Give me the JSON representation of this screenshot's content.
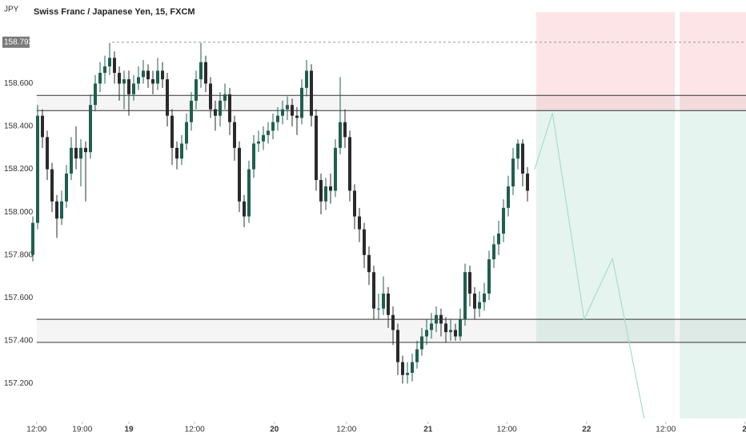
{
  "chart_data": {
    "type": "candlestick",
    "title": "Swiss Franc / Japanese Yen, 15, FXCM",
    "currency": "JPY",
    "up_color": "#1f5f4f",
    "down_color": "#2a2a2a",
    "open": [
      157.8,
      157.95,
      158.45,
      158.35,
      158.2,
      158.05,
      157.97,
      158.05,
      158.18,
      158.3,
      158.25,
      158.3,
      158.28,
      158.5,
      158.6,
      158.65,
      158.68,
      158.72,
      158.65,
      158.6,
      158.62,
      158.55,
      158.6,
      158.63,
      158.66,
      158.62,
      158.6,
      158.66,
      158.62,
      158.45,
      158.3,
      158.25,
      158.32,
      158.42,
      158.52,
      158.62,
      158.7,
      158.6,
      158.48,
      158.45,
      158.52,
      158.55,
      158.42,
      158.3,
      158.05,
      157.98,
      158.2,
      158.32,
      158.33,
      158.36,
      158.38,
      158.42,
      158.45,
      158.48,
      158.5,
      158.45,
      158.44,
      158.58,
      158.66,
      158.45,
      158.15,
      158.05,
      158.12,
      158.1,
      158.3,
      158.42,
      158.35,
      158.1,
      157.98,
      157.92,
      157.8,
      157.72,
      157.55,
      157.55,
      157.62,
      157.52,
      157.45,
      157.3,
      157.24,
      157.25,
      157.3,
      157.36,
      157.42,
      157.45,
      157.48,
      157.52,
      157.48,
      157.44,
      157.45,
      157.42,
      157.5,
      157.72,
      157.62,
      157.55,
      157.58,
      157.62,
      157.78,
      157.85,
      157.9,
      158.02,
      158.12,
      158.25,
      158.32,
      158.18
    ],
    "high": [
      157.98,
      158.5,
      158.48,
      158.38,
      158.23,
      158.08,
      158.1,
      158.22,
      158.35,
      158.4,
      158.34,
      158.33,
      158.55,
      158.64,
      158.7,
      158.73,
      158.79,
      158.75,
      158.68,
      158.66,
      158.66,
      158.64,
      158.68,
      158.71,
      158.69,
      158.66,
      158.72,
      158.7,
      158.65,
      158.48,
      158.33,
      158.36,
      158.46,
      158.56,
      158.66,
      158.79,
      158.73,
      158.63,
      158.52,
      158.56,
      158.6,
      158.58,
      158.45,
      158.33,
      158.08,
      158.24,
      158.36,
      158.38,
      158.4,
      158.42,
      158.46,
      158.49,
      158.52,
      158.54,
      158.53,
      158.49,
      158.62,
      158.71,
      158.69,
      158.48,
      158.18,
      158.16,
      158.18,
      158.34,
      158.63,
      158.48,
      158.38,
      158.13,
      158.02,
      157.95,
      157.84,
      157.75,
      157.62,
      157.7,
      157.65,
      157.56,
      157.48,
      157.33,
      157.3,
      157.34,
      157.4,
      157.46,
      157.5,
      157.53,
      157.56,
      157.55,
      157.51,
      157.5,
      157.48,
      157.55,
      157.76,
      157.75,
      157.65,
      157.63,
      157.67,
      157.82,
      157.89,
      157.96,
      158.06,
      158.17,
      158.3,
      158.34,
      158.34,
      158.21
    ],
    "low": [
      157.77,
      157.92,
      158.3,
      158.15,
      158.0,
      157.88,
      157.94,
      158.02,
      158.15,
      158.2,
      158.12,
      158.05,
      158.25,
      158.47,
      158.56,
      158.6,
      158.64,
      158.6,
      158.52,
      158.48,
      158.45,
      158.52,
      158.57,
      158.6,
      158.58,
      158.55,
      158.57,
      158.58,
      158.4,
      158.22,
      158.2,
      158.22,
      158.29,
      158.38,
      158.48,
      158.58,
      158.56,
      158.44,
      158.38,
      158.4,
      158.48,
      158.36,
      158.24,
      158.0,
      157.93,
      157.95,
      158.16,
      158.28,
      158.29,
      158.32,
      158.34,
      158.38,
      158.41,
      158.43,
      158.4,
      158.36,
      158.41,
      158.54,
      158.4,
      158.1,
      157.99,
      158.01,
      158.04,
      158.07,
      158.27,
      158.3,
      158.05,
      157.92,
      157.86,
      157.74,
      157.66,
      157.5,
      157.5,
      157.52,
      157.46,
      157.38,
      157.24,
      157.2,
      157.2,
      157.21,
      157.27,
      157.33,
      157.38,
      157.41,
      157.44,
      157.42,
      157.39,
      157.4,
      157.4,
      157.4,
      157.47,
      157.56,
      157.5,
      157.51,
      157.54,
      157.59,
      157.74,
      157.8,
      157.86,
      157.98,
      158.08,
      158.2,
      158.12,
      158.05
    ],
    "close": [
      157.95,
      158.45,
      158.35,
      158.2,
      158.05,
      157.97,
      158.05,
      158.18,
      158.3,
      158.25,
      158.3,
      158.28,
      158.5,
      158.6,
      158.65,
      158.68,
      158.72,
      158.65,
      158.6,
      158.62,
      158.55,
      158.6,
      158.63,
      158.66,
      158.62,
      158.6,
      158.66,
      158.62,
      158.45,
      158.3,
      158.25,
      158.32,
      158.42,
      158.52,
      158.62,
      158.7,
      158.6,
      158.48,
      158.45,
      158.52,
      158.55,
      158.42,
      158.3,
      158.05,
      157.98,
      158.2,
      158.32,
      158.33,
      158.36,
      158.38,
      158.42,
      158.45,
      158.48,
      158.5,
      158.45,
      158.44,
      158.58,
      158.66,
      158.45,
      158.15,
      158.05,
      158.12,
      158.1,
      158.3,
      158.42,
      158.35,
      158.1,
      157.98,
      157.92,
      157.8,
      157.72,
      157.55,
      157.55,
      157.62,
      157.52,
      157.45,
      157.3,
      157.24,
      157.25,
      157.3,
      157.36,
      157.42,
      157.45,
      157.48,
      157.52,
      157.48,
      157.44,
      157.45,
      157.42,
      157.5,
      157.72,
      157.62,
      157.55,
      157.58,
      157.62,
      157.78,
      157.85,
      157.9,
      158.02,
      158.12,
      158.25,
      158.32,
      158.18,
      158.1
    ],
    "xlim": [
      0,
      149
    ],
    "xticks": [
      {
        "value": 1.3,
        "label": "12:00"
      },
      {
        "value": 10.8,
        "label": "19:00"
      },
      {
        "value": 20.5,
        "label": "19"
      },
      {
        "value": 34.2,
        "label": "12:00"
      },
      {
        "value": 50.8,
        "label": "20"
      },
      {
        "value": 65.8,
        "label": "12:00"
      },
      {
        "value": 82.8,
        "label": "21"
      },
      {
        "value": 99.2,
        "label": "12:00"
      },
      {
        "value": 115.8,
        "label": "22"
      },
      {
        "value": 132.3,
        "label": "12:00"
      },
      {
        "value": 148.7,
        "label": "2"
      }
    ],
    "ylim": [
      157.03,
      158.99
    ],
    "yticks": [
      {
        "value": 157.2,
        "label": "157.200"
      },
      {
        "value": 157.4,
        "label": "157.400"
      },
      {
        "value": 157.6,
        "label": "157.600"
      },
      {
        "value": 157.8,
        "label": "157.800"
      },
      {
        "value": 158.0,
        "label": "158.000"
      },
      {
        "value": 158.2,
        "label": "158.200"
      },
      {
        "value": 158.4,
        "label": "158.400"
      },
      {
        "value": 158.6,
        "label": "158.600"
      }
    ],
    "price_marker": {
      "value": 158.793,
      "label": "158.793",
      "from": 17
    },
    "levels": [
      158.545,
      158.474,
      157.5,
      157.392
    ],
    "level_zones": [
      [
        158.474,
        158.545
      ],
      [
        157.392,
        157.5
      ]
    ],
    "zones": [
      {
        "x": [
          105.3,
          134.2
        ],
        "y": [
          158.474,
          158.933
        ],
        "color": "#fde4e6"
      },
      {
        "x": [
          135.2,
          149
        ],
        "y": [
          158.474,
          158.933
        ],
        "color": "#fde4e6"
      },
      {
        "x": [
          105.3,
          134.2
        ],
        "y": [
          157.392,
          158.474
        ],
        "color": "#e6f4f0"
      },
      {
        "x": [
          135.2,
          149
        ],
        "y": [
          157.037,
          158.474
        ],
        "color": "#e6f4f0"
      }
    ],
    "projection": {
      "x": [
        105,
        108.7,
        115.3,
        121.2,
        127.8
      ],
      "y": [
        158.2,
        158.463,
        157.5,
        157.784,
        157.037
      ],
      "color": "#a8dccb"
    }
  }
}
